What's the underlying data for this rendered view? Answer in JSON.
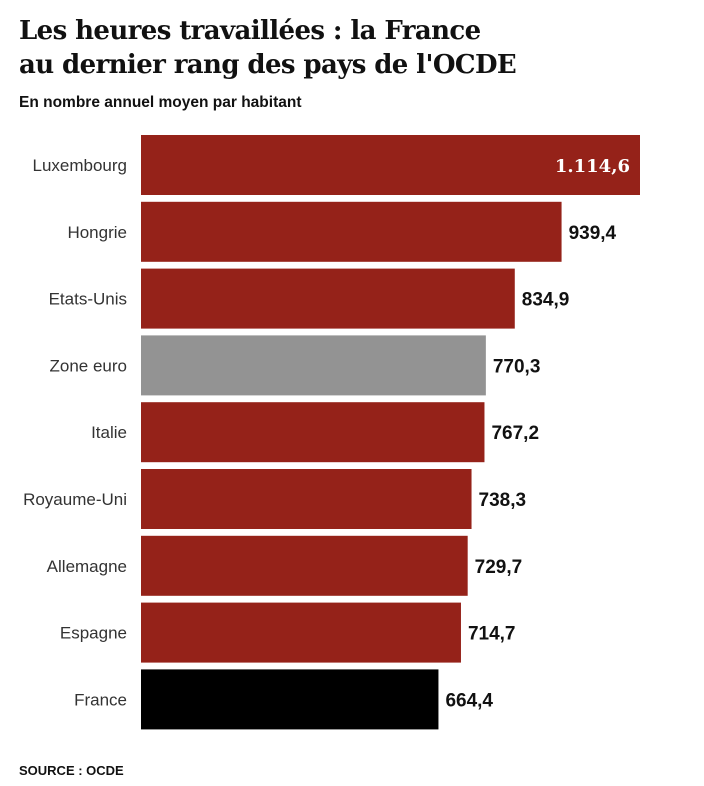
{
  "chart_data": {
    "type": "bar",
    "orientation": "horizontal",
    "title": "Les heures travaillées : la France au dernier rang des pays de l'OCDE",
    "title_lines": [
      "Les heures travaillées : la France",
      "au dernier rang des pays de l'OCDE"
    ],
    "subtitle": "En nombre annuel moyen par habitant",
    "source": "SOURCE : OCDE",
    "xlabel": "",
    "ylabel": "",
    "xlim": [
      0,
      1114.6
    ],
    "grid": false,
    "legend": "none",
    "categories": [
      "Luxembourg",
      "Hongrie",
      "Etats-Unis",
      "Zone euro",
      "Italie",
      "Royaume-Uni",
      "Allemagne",
      "Espagne",
      "France"
    ],
    "values": [
      1114.6,
      939.4,
      834.9,
      770.3,
      767.2,
      738.3,
      729.7,
      714.7,
      664.4
    ],
    "value_labels": [
      "1.114,6",
      "939,4",
      "834,9",
      "770,3",
      "767,2",
      "738,3",
      "729,7",
      "714,7",
      "664,4"
    ],
    "bar_colors": [
      "#952219",
      "#952219",
      "#952219",
      "#939393",
      "#952219",
      "#952219",
      "#952219",
      "#952219",
      "#000000"
    ]
  },
  "colors": {
    "default_bar": "#952219",
    "highlight_euro": "#939393",
    "highlight_france": "#000000",
    "inside_label": "#ffffff",
    "outside_label": "#111111"
  }
}
